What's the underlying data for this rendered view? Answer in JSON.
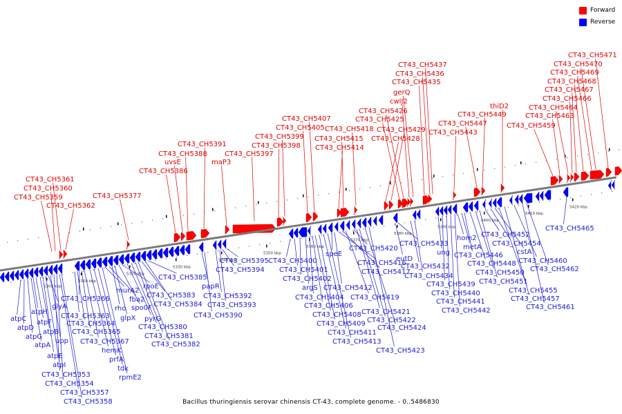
{
  "legend": {
    "items": [
      {
        "label": "Forward",
        "color": "#ff0000"
      },
      {
        "label": "Reverse",
        "color": "#0000ff"
      }
    ]
  },
  "caption": "Bacillus thuringiensis serovar chinensis CT-43, complete genome. - 0..5486830",
  "colors": {
    "forward": "#ff0000",
    "reverse": "#0000ff",
    "forward_label": "#e00000",
    "reverse_label": "#1a1ad8",
    "backbone": "#808080"
  },
  "scale": {
    "unit": "kbp",
    "ticks": [
      "5300 kbp",
      "5310 kbp",
      "5320 kbp",
      "5330 kbp",
      "5340 kbp",
      "5350 kbp",
      "5360 kbp",
      "5370 kbp",
      "5380 kbp",
      "5390 kbp",
      "5400 kbp",
      "5410 kbp",
      "5420 kbp"
    ]
  },
  "forward_genes": [
    "CT43_CH5361",
    "CT43_CH5360",
    "CT43_CH5359",
    "CT43_CH5362",
    "CT43_CH5377",
    "CT43_CH5386",
    "uvsE",
    "CT43_CH5388",
    "CT43_CH5391",
    "maP3",
    "CT43_CH5397",
    "CT43_CH5398",
    "CT43_CH5399",
    "CT43_CH5405",
    "CT43_CH5407",
    "CT43_CH5414",
    "CT43_CH5415",
    "CT43_CH5418",
    "CT43_CH5428",
    "CT43_CH5429",
    "CT43_CH5425",
    "CT43_CH5426",
    "cwlJ2",
    "gerQ",
    "CT43_CH5435",
    "CT43_CH5436",
    "CT43_CH5437",
    "CT43_CH5443",
    "CT43_CH5447",
    "CT43_CH5449",
    "thiD2",
    "CT43_CH5459",
    "CT43_CH5463",
    "CT43_CH5464",
    "CT43_CH5466",
    "CT43_CH5467",
    "CT43_CH5468",
    "CT43_CH5469",
    "CT43_CH5470",
    "CT43_CH5471"
  ],
  "reverse_genes": [
    "atpC",
    "atpD",
    "atpG",
    "atpA",
    "atpH",
    "atpF",
    "atpB",
    "atpE",
    "atpI",
    "glyA",
    "upp",
    "CT43_CH5353",
    "CT43_CH5354",
    "CT43_CH5357",
    "CT43_CH5358",
    "CT43_CH5366",
    "CT43_CH5363",
    "CT43_CH5364",
    "CT43_CH5365",
    "CT43_CH5367",
    "hemK",
    "prfA",
    "tdk",
    "rpmE2",
    "murA2",
    "fba2",
    "rho",
    "glpX",
    "spo0F",
    "rpoE",
    "pyrG",
    "CT43_CH5380",
    "CT43_CH5381",
    "CT43_CH5382",
    "CT43_CH5383",
    "CT43_CH5384",
    "CT43_CH5385",
    "papR",
    "CT43_CH5390",
    "CT43_CH5392",
    "CT43_CH5393",
    "CT43_CH5394",
    "CT43_CH5395",
    "CT43_CH5400",
    "CT43_CH5401",
    "CT43_CH5402",
    "argS",
    "CT43_CH5404",
    "CT43_CH5406",
    "CT43_CH5408",
    "CT43_CH5409",
    "CT43_CH5411",
    "CT43_CH5413",
    "speE",
    "CT43_CH5412",
    "CT43_CH5416",
    "CT43_CH5417",
    "CT43_CH5419",
    "CT43_CH5420",
    "CT43_CH5421",
    "CT43_CH5422",
    "CT43_CH5424",
    "CT43_CH5423",
    "eutD",
    "CT43_CH5433",
    "CT43_CH5432",
    "CT43_CH5434",
    "ung",
    "CT43_CH5439",
    "CT43_CH5440",
    "CT43_CH5441",
    "CT43_CH5442",
    "hom2",
    "metA",
    "CT43_CH5446",
    "CT43_CH5448",
    "CT43_CH5450",
    "CT43_CH5451",
    "CT43_CH5452",
    "CT43_CH5454",
    "cstA",
    "CT43_CH5455",
    "CT43_CH5457",
    "CT43_CH5460",
    "CT43_CH5461",
    "CT43_CH5462",
    "CT43_CH5465"
  ]
}
